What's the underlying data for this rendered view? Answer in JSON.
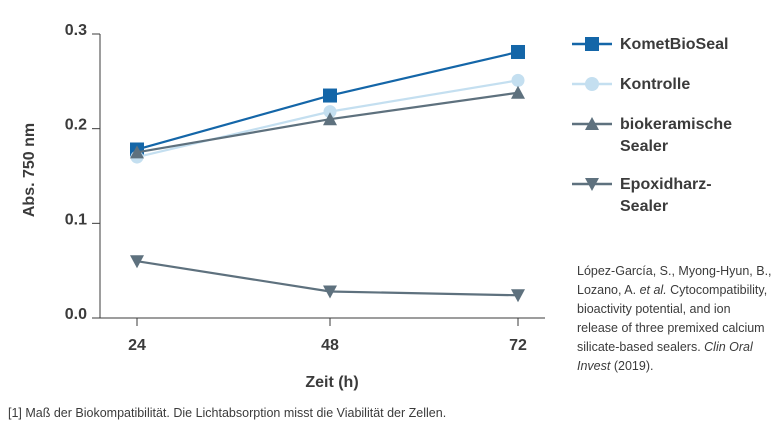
{
  "chart_data": {
    "type": "line",
    "x": [
      24,
      48,
      72
    ],
    "xlabel": "Zeit (h)",
    "ylabel": "Abs. 750 nm",
    "xticks": [
      "24",
      "48",
      "72"
    ],
    "yticks": [
      "0.0",
      "0.1",
      "0.2",
      "0.3"
    ],
    "ylim": [
      0.0,
      0.3
    ],
    "grid": false,
    "legend_position": "right",
    "series": [
      {
        "name": "KometBioSeal",
        "values": [
          0.178,
          0.235,
          0.281
        ],
        "color": "#1466a8",
        "marker": "square"
      },
      {
        "name": "Kontrolle",
        "values": [
          0.17,
          0.218,
          0.251
        ],
        "color": "#c4dff0",
        "marker": "circle"
      },
      {
        "name": "biokeramische Sealer",
        "values": [
          0.175,
          0.21,
          0.238
        ],
        "color": "#5e717e",
        "marker": "triangle-up"
      },
      {
        "name": "Epoxidharz-Sealer",
        "values": [
          0.06,
          0.028,
          0.024
        ],
        "color": "#5e717e",
        "marker": "triangle-down"
      }
    ]
  },
  "legend": {
    "items": [
      {
        "line1": "KometBioSeal",
        "line2": ""
      },
      {
        "line1": "Kontrolle",
        "line2": ""
      },
      {
        "line1": "biokeramische",
        "line2": "Sealer"
      },
      {
        "line1": "Epoxidharz-",
        "line2": "Sealer"
      }
    ]
  },
  "reference": {
    "authors": "López-García, S., Myong-Hyun, B., Lozano, A.",
    "etal": "et al.",
    "title": "Cytocompatibility, bioactivity potential, and ion release of three premixed calcium silicate-based sealers.",
    "journal": "Clin Oral Invest",
    "year": "(2019)."
  },
  "footnote": "[1] Maß der Biokompatibilität. Die Lichtabsorption misst die Viabilität der Zellen."
}
